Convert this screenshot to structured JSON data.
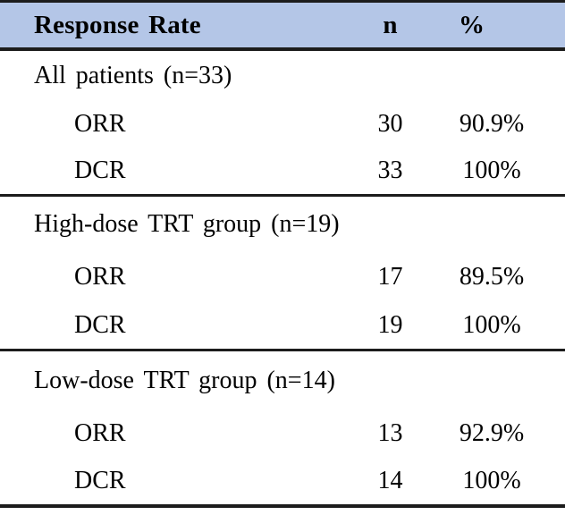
{
  "table": {
    "header": {
      "label": "Response Rate",
      "n": "n",
      "pct": "%"
    },
    "sections": [
      {
        "label": "All patients (n=33)",
        "rows": [
          {
            "metric": "ORR",
            "n": "30",
            "pct": "90.9%"
          },
          {
            "metric": "DCR",
            "n": "33",
            "pct": "100%"
          }
        ]
      },
      {
        "label": "High-dose TRT group (n=19)",
        "rows": [
          {
            "metric": "ORR",
            "n": "17",
            "pct": "89.5%"
          },
          {
            "metric": "DCR",
            "n": "19",
            "pct": "100%"
          }
        ]
      },
      {
        "label": "Low-dose TRT group (n=14)",
        "rows": [
          {
            "metric": "ORR",
            "n": "13",
            "pct": "92.9%"
          },
          {
            "metric": "DCR",
            "n": "14",
            "pct": "100%"
          }
        ]
      }
    ],
    "colors": {
      "header_bg": "#b4c6e7",
      "border": "#1c1c1c",
      "text": "#000000"
    }
  }
}
